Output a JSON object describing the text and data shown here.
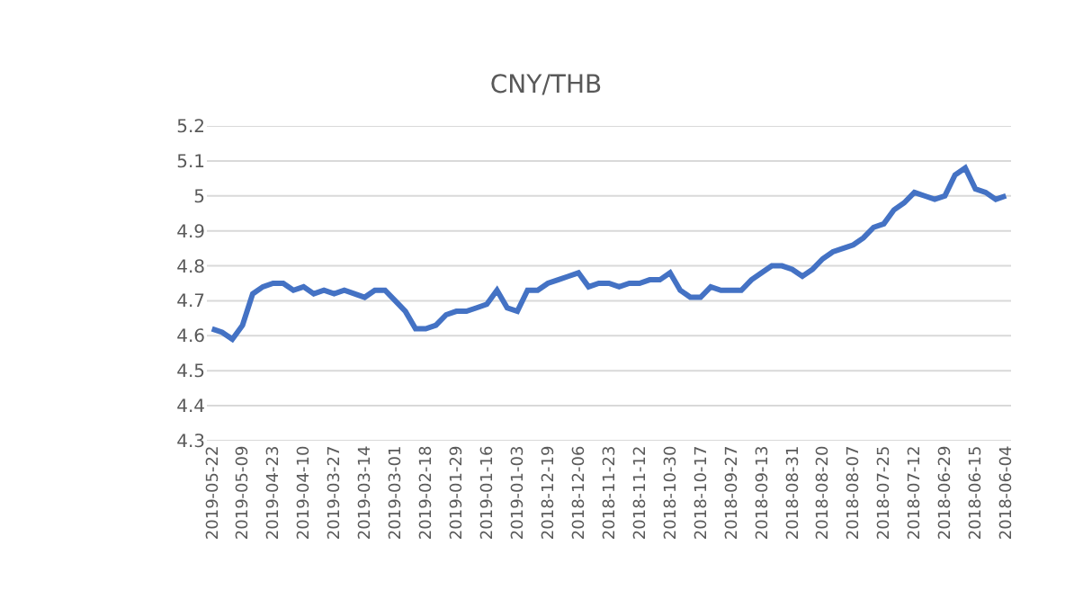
{
  "chart_data": {
    "type": "line",
    "title": "CNY/THB",
    "categories": [
      "2019-05-22",
      null,
      null,
      "2019-05-09",
      null,
      null,
      "2019-04-23",
      null,
      null,
      "2019-04-10",
      null,
      null,
      "2019-03-27",
      null,
      null,
      "2019-03-14",
      null,
      null,
      "2019-03-01",
      null,
      null,
      "2019-02-18",
      null,
      null,
      "2019-01-29",
      null,
      null,
      "2019-01-16",
      null,
      null,
      "2019-01-03",
      null,
      null,
      "2018-12-19",
      null,
      null,
      "2018-12-06",
      null,
      null,
      "2018-11-23",
      null,
      null,
      "2018-11-12",
      null,
      null,
      "2018-10-30",
      null,
      null,
      "2018-10-17",
      null,
      null,
      "2018-09-27",
      null,
      null,
      "2018-09-13",
      null,
      null,
      "2018-08-31",
      null,
      null,
      "2018-08-20",
      null,
      null,
      "2018-08-07",
      null,
      null,
      "2018-07-25",
      null,
      null,
      "2018-07-12",
      null,
      null,
      "2018-06-29",
      null,
      null,
      "2018-06-15",
      null,
      null,
      "2018-06-04"
    ],
    "series": [
      {
        "color": "#4472c4",
        "values": [
          4.62,
          4.61,
          4.59,
          4.63,
          4.72,
          4.74,
          4.75,
          4.75,
          4.73,
          4.74,
          4.72,
          4.73,
          4.72,
          4.73,
          4.72,
          4.71,
          4.73,
          4.73,
          4.7,
          4.67,
          4.62,
          4.62,
          4.63,
          4.66,
          4.67,
          4.67,
          4.68,
          4.69,
          4.73,
          4.68,
          4.67,
          4.73,
          4.73,
          4.75,
          4.76,
          4.77,
          4.78,
          4.74,
          4.75,
          4.75,
          4.74,
          4.75,
          4.75,
          4.76,
          4.76,
          4.78,
          4.73,
          4.71,
          4.71,
          4.74,
          4.73,
          4.73,
          4.73,
          4.76,
          4.78,
          4.8,
          4.8,
          4.79,
          4.77,
          4.79,
          4.82,
          4.84,
          4.85,
          4.86,
          4.88,
          4.91,
          4.92,
          4.96,
          4.98,
          5.01,
          5.0,
          4.99,
          5.0,
          5.06,
          5.08,
          5.02,
          5.01,
          4.99,
          5.0
        ]
      }
    ],
    "ylim": [
      4.3,
      5.2
    ],
    "yticks": [
      4.3,
      4.4,
      4.5,
      4.6,
      4.7,
      4.8,
      4.9,
      5,
      5.1,
      5.2
    ],
    "grid": "y",
    "line_style": "solid",
    "marker": "none"
  }
}
